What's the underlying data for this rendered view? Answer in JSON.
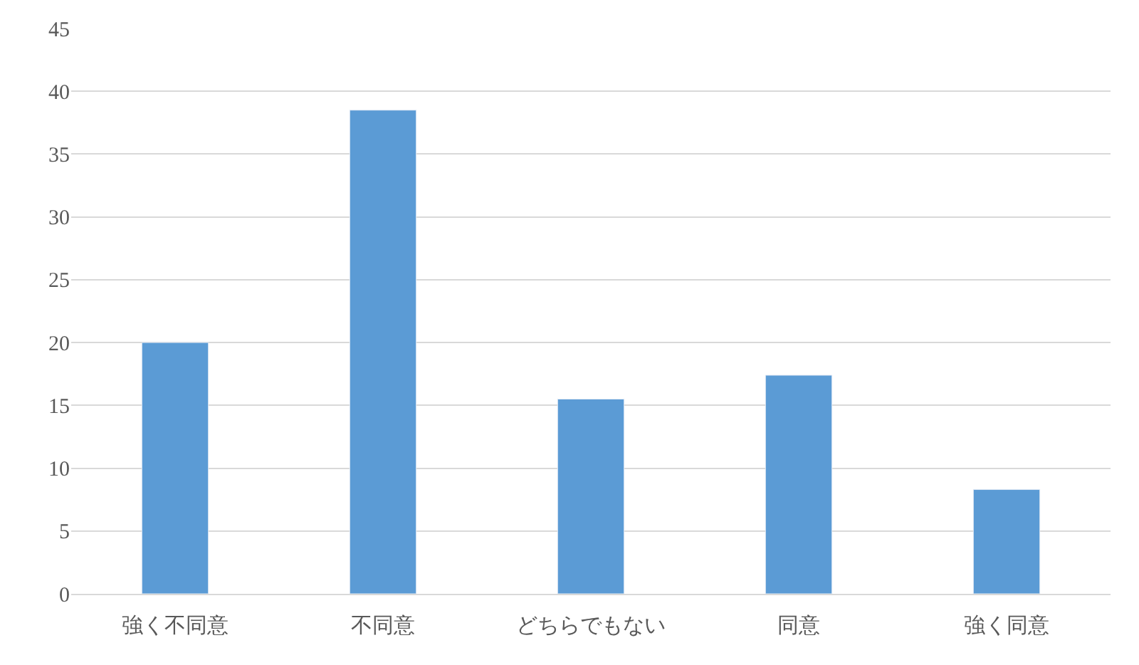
{
  "chart_data": {
    "type": "bar",
    "categories": [
      "強く不同意",
      "不同意",
      "どちらでもない",
      "同意",
      "強く同意"
    ],
    "values": [
      20,
      38.5,
      15.5,
      17.4,
      8.3
    ],
    "color": "#5b9bd5",
    "ylim": [
      0,
      45
    ],
    "yticks": [
      0,
      5,
      10,
      15,
      20,
      25,
      30,
      35,
      40,
      45
    ],
    "grid": "y"
  }
}
